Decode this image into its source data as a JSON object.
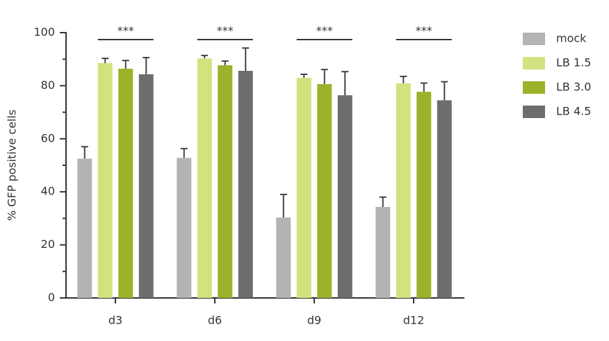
{
  "chart_data": {
    "type": "bar",
    "y_label": "% GFP positive cells",
    "categories": [
      "d3",
      "d6",
      "d9",
      "d12"
    ],
    "series": [
      {
        "name": "mock",
        "color": "#b3b3b3",
        "values": [
          52.5,
          52.8,
          30.3,
          34.3
        ],
        "errors": [
          4.5,
          3.5,
          8.7,
          3.7
        ]
      },
      {
        "name": "LB 1.5",
        "color": "#d4e17f",
        "values": [
          88.5,
          90.3,
          83,
          80.9
        ],
        "errors": [
          1.8,
          1.1,
          1.3,
          2.6
        ]
      },
      {
        "name": "LB 3.0",
        "color": "#9bb22a",
        "values": [
          86.4,
          87.7,
          80.6,
          77.7
        ],
        "errors": [
          3.1,
          1.6,
          5.5,
          3.3
        ]
      },
      {
        "name": "LB 4.5",
        "color": "#6d6d6d",
        "values": [
          84.3,
          85.6,
          76.4,
          74.5
        ],
        "errors": [
          6.3,
          8.6,
          8.9,
          7.0
        ]
      }
    ],
    "annotations": [
      "***",
      "***",
      "***",
      "***"
    ],
    "ylim": [
      0,
      100
    ],
    "yticks": [
      0,
      20,
      40,
      60,
      80,
      100
    ],
    "minor_yticks": [
      10,
      30,
      50,
      70,
      90
    ],
    "legend": "right"
  }
}
